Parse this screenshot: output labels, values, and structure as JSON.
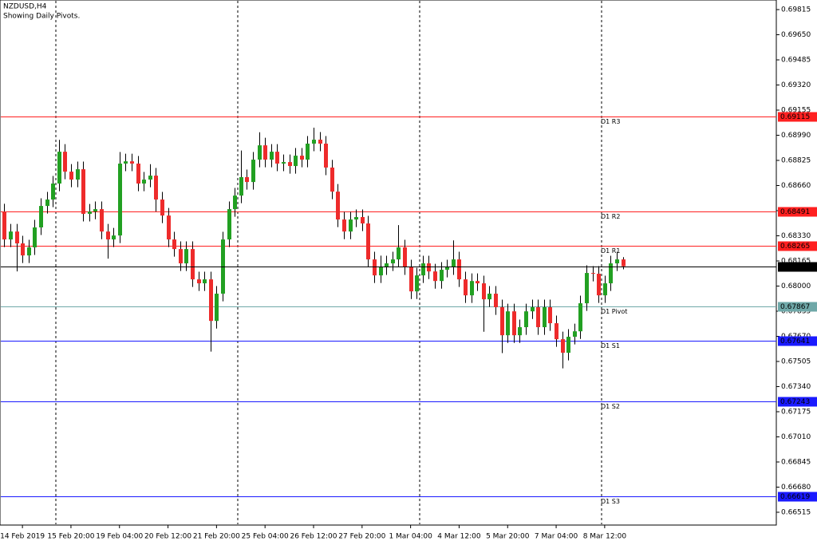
{
  "chart_data": {
    "type": "candlestick",
    "title": "NZDUSD,H4",
    "subtitle": "Showing Daily Pivots.",
    "up_color": "#22a022",
    "down_color": "#ee2b2b",
    "xlim": [
      -0.7,
      127.3
    ],
    "ylim": [
      0.66431,
      0.69878
    ],
    "xticks": [
      {
        "value": 3,
        "label": "14 Feb 2019"
      },
      {
        "value": 11,
        "label": "15 Feb 20:00"
      },
      {
        "value": 19,
        "label": "19 Feb 04:00"
      },
      {
        "value": 27,
        "label": "20 Feb 12:00"
      },
      {
        "value": 35,
        "label": "21 Feb 20:00"
      },
      {
        "value": 43,
        "label": "25 Feb 04:00"
      },
      {
        "value": 51,
        "label": "26 Feb 12:00"
      },
      {
        "value": 59,
        "label": "27 Feb 20:00"
      },
      {
        "value": 67,
        "label": "1 Mar 04:00"
      },
      {
        "value": 75,
        "label": "4 Mar 12:00"
      },
      {
        "value": 83,
        "label": "5 Mar 20:00"
      },
      {
        "value": 91,
        "label": "7 Mar 04:00"
      },
      {
        "value": 99,
        "label": "8 Mar 12:00"
      }
    ],
    "yticks": [
      0.69815,
      {
        "value": 0.6965,
        "label": "0.69650"
      },
      0.69485,
      {
        "value": 0.6932,
        "label": "0.69320"
      },
      0.69155,
      {
        "value": 0.6899,
        "label": "0.68990"
      },
      0.68825,
      {
        "value": 0.6866,
        "label": "0.68660"
      },
      0.68495,
      {
        "value": 0.6833,
        "label": "0.68330"
      },
      0.68165,
      {
        "value": 0.68,
        "label": "0.68000"
      },
      0.67835,
      {
        "value": 0.6767,
        "label": "0.67670"
      },
      0.67505,
      {
        "value": 0.6734,
        "label": "0.67340"
      },
      0.67175,
      {
        "value": 0.6701,
        "label": "0.67010"
      },
      0.66845,
      {
        "value": 0.6668,
        "label": "0.66680"
      },
      0.66515
    ],
    "levels": [
      {
        "name": "D1 R3",
        "value": 0.69115,
        "color": "#ff2020"
      },
      {
        "name": "D1 R2",
        "value": 0.68491,
        "color": "#ff2020"
      },
      {
        "name": "D1 R1",
        "value": 0.68265,
        "color": "#ff2020"
      },
      {
        "name": "D1 Pivot",
        "value": 0.67867,
        "color": "#6fa8a8"
      },
      {
        "name": "D1 S1",
        "value": 0.67641,
        "color": "#1a1aff"
      },
      {
        "name": "D1 S2",
        "value": 0.67243,
        "color": "#1a1aff"
      },
      {
        "name": "D1 S3",
        "value": 0.66619,
        "color": "#1a1aff"
      }
    ],
    "last_price": {
      "value": 0.6813,
      "label": "0.68130"
    },
    "open": [
      0.6849,
      0.68306,
      0.68358,
      0.6828,
      0.68201,
      0.68254,
      0.68385,
      0.68526,
      0.68568,
      0.68673,
      0.68882,
      0.68751,
      0.68699,
      0.68767,
      0.68474,
      0.68489,
      0.68505,
      0.68358,
      0.68306,
      0.68332,
      0.68804,
      0.68819,
      0.68804,
      0.68673,
      0.68699,
      0.68725,
      0.68568,
      0.68463,
      0.68306,
      0.68243,
      0.68149,
      0.68243,
      0.68044,
      0.68018,
      0.68044,
      0.67771,
      0.6795,
      0.68306,
      0.68505,
      0.68594,
      0.68715,
      0.68683,
      0.6883,
      0.68924,
      0.6883,
      0.68882,
      0.68804,
      0.68814,
      0.68788,
      0.68856,
      0.6883,
      0.68935,
      0.68961,
      0.68935,
      0.68778,
      0.6862,
      0.68437,
      0.68358,
      0.68437,
      0.68453,
      0.68411,
      0.68175,
      0.6807,
      0.68123,
      0.68149,
      0.68175,
      0.68254,
      0.68123,
      0.67965,
      0.6807,
      0.68149,
      0.68096,
      0.68033,
      0.68107,
      0.68123,
      0.68175,
      0.68044,
      0.67939,
      0.68033,
      0.68018,
      0.67913,
      0.6795,
      0.67861,
      0.67677,
      0.67834,
      0.67677,
      0.6773,
      0.67834,
      0.67861,
      0.6773,
      0.67861,
      0.67756,
      0.67651,
      0.67562,
      0.67667,
      0.67703,
      0.67887,
      0.68086,
      0.68081,
      0.67939,
      0.68018,
      0.68149,
      0.68175
    ],
    "high": [
      0.6854,
      0.68408,
      0.68408,
      0.6833,
      0.68304,
      0.68435,
      0.68576,
      0.68618,
      0.68723,
      0.6896,
      0.68932,
      0.68801,
      0.68817,
      0.68817,
      0.68539,
      0.68555,
      0.68555,
      0.68408,
      0.68382,
      0.6888,
      0.68869,
      0.68869,
      0.68854,
      0.68749,
      0.688,
      0.68775,
      0.68618,
      0.68513,
      0.68356,
      0.68293,
      0.68293,
      0.68293,
      0.68094,
      0.68094,
      0.68094,
      0.68,
      0.68356,
      0.68555,
      0.68644,
      0.6889,
      0.68765,
      0.6888,
      0.6901,
      0.68974,
      0.68932,
      0.68932,
      0.68864,
      0.68864,
      0.68906,
      0.68906,
      0.68985,
      0.6904,
      0.69011,
      0.68985,
      0.68828,
      0.6867,
      0.68487,
      0.68487,
      0.68503,
      0.68503,
      0.68461,
      0.68225,
      0.682,
      0.68199,
      0.68225,
      0.684,
      0.68304,
      0.68173,
      0.6812,
      0.68199,
      0.68199,
      0.68146,
      0.68157,
      0.68173,
      0.683,
      0.68225,
      0.68094,
      0.68083,
      0.68083,
      0.68068,
      0.68,
      0.68,
      0.67911,
      0.67884,
      0.67884,
      0.6778,
      0.67884,
      0.67911,
      0.67911,
      0.67911,
      0.67911,
      0.67806,
      0.67701,
      0.67717,
      0.67753,
      0.67937,
      0.68136,
      0.68131,
      0.68131,
      0.68068,
      0.68199,
      0.68225,
      0.6819
    ],
    "low": [
      0.68256,
      0.68256,
      0.68096,
      0.68151,
      0.68151,
      0.68204,
      0.68335,
      0.68476,
      0.68518,
      0.68623,
      0.68701,
      0.68649,
      0.68649,
      0.68424,
      0.68424,
      0.68439,
      0.68308,
      0.6818,
      0.68256,
      0.68282,
      0.68754,
      0.68754,
      0.68623,
      0.68623,
      0.68649,
      0.6849,
      0.68413,
      0.68256,
      0.68193,
      0.68099,
      0.68099,
      0.67994,
      0.67968,
      0.67968,
      0.6757,
      0.67721,
      0.679,
      0.68256,
      0.68455,
      0.68544,
      0.68633,
      0.68633,
      0.6878,
      0.6878,
      0.6878,
      0.68754,
      0.68754,
      0.68738,
      0.68738,
      0.6878,
      0.6878,
      0.68885,
      0.68885,
      0.68728,
      0.6857,
      0.68387,
      0.68308,
      0.68308,
      0.68387,
      0.68361,
      0.68125,
      0.6802,
      0.6802,
      0.68073,
      0.68099,
      0.68125,
      0.68073,
      0.67915,
      0.67915,
      0.6802,
      0.68046,
      0.67983,
      0.67983,
      0.68057,
      0.68073,
      0.67994,
      0.67889,
      0.67889,
      0.67968,
      0.677,
      0.67863,
      0.67811,
      0.6756,
      0.67627,
      0.67627,
      0.67627,
      0.6768,
      0.67784,
      0.6768,
      0.6768,
      0.67706,
      0.67601,
      0.6746,
      0.67512,
      0.67617,
      0.67653,
      0.67837,
      0.68031,
      0.67889,
      0.67889,
      0.67968,
      0.68099,
      0.6811
    ],
    "close": [
      0.68306,
      0.68358,
      0.6828,
      0.68201,
      0.68254,
      0.68385,
      0.68526,
      0.68568,
      0.68673,
      0.68882,
      0.68751,
      0.68699,
      0.68767,
      0.68474,
      0.68489,
      0.68505,
      0.68358,
      0.68306,
      0.68332,
      0.68804,
      0.68819,
      0.68804,
      0.68673,
      0.68699,
      0.68725,
      0.68568,
      0.68463,
      0.68306,
      0.68243,
      0.68149,
      0.68243,
      0.68044,
      0.68018,
      0.68044,
      0.67771,
      0.6795,
      0.68306,
      0.68505,
      0.68594,
      0.68715,
      0.68683,
      0.6883,
      0.68924,
      0.6883,
      0.68882,
      0.68804,
      0.68814,
      0.68788,
      0.68856,
      0.6883,
      0.68935,
      0.68961,
      0.68935,
      0.68778,
      0.6862,
      0.68437,
      0.68358,
      0.68437,
      0.68453,
      0.68411,
      0.68175,
      0.6807,
      0.68123,
      0.68149,
      0.68175,
      0.68254,
      0.68123,
      0.67965,
      0.6807,
      0.68149,
      0.68096,
      0.68033,
      0.68107,
      0.68123,
      0.68175,
      0.68044,
      0.67939,
      0.68033,
      0.68018,
      0.67913,
      0.6795,
      0.67861,
      0.67677,
      0.67834,
      0.67677,
      0.6773,
      0.67834,
      0.67861,
      0.6773,
      0.67861,
      0.67756,
      0.67651,
      0.67562,
      0.67667,
      0.67703,
      0.67887,
      0.68086,
      0.68081,
      0.67939,
      0.68018,
      0.68149,
      0.68175,
      0.6813
    ]
  }
}
